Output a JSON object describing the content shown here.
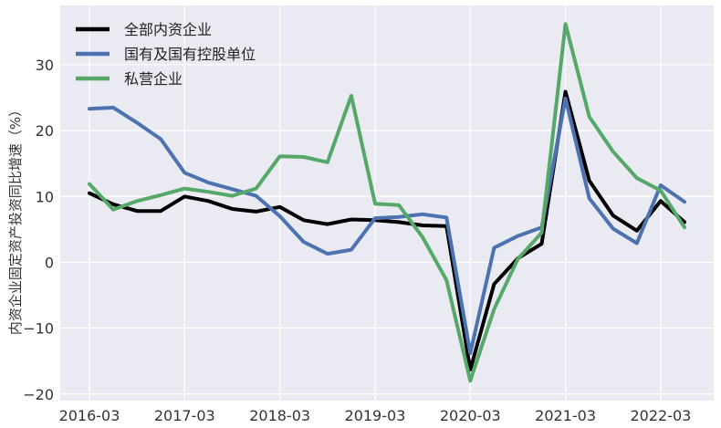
{
  "chart_data": {
    "type": "line",
    "ylabel": "内资企业固定资产投资同比增速（%）",
    "xlabel": "",
    "title": "",
    "ylim": [
      -21,
      39
    ],
    "yticks": [
      -20,
      -10,
      0,
      10,
      20,
      30
    ],
    "xticks": [
      "2016-03",
      "2017-03",
      "2018-03",
      "2019-03",
      "2020-03",
      "2021-03",
      "2022-03"
    ],
    "x": [
      "2016-03",
      "2016-06",
      "2016-09",
      "2016-12",
      "2017-03",
      "2017-06",
      "2017-09",
      "2017-12",
      "2018-03",
      "2018-06",
      "2018-09",
      "2018-12",
      "2019-03",
      "2019-06",
      "2019-09",
      "2019-12",
      "2020-03",
      "2020-06",
      "2020-09",
      "2020-12",
      "2021-03",
      "2021-06",
      "2021-09",
      "2021-12",
      "2022-03",
      "2022-06"
    ],
    "grid": true,
    "legend_position": "top-left",
    "series": [
      {
        "name": "全部内资企业",
        "color": "#000000",
        "values": [
          10.5,
          8.8,
          7.8,
          7.8,
          10.0,
          9.3,
          8.1,
          7.7,
          8.4,
          6.4,
          5.8,
          6.5,
          6.4,
          6.1,
          5.6,
          5.5,
          -16.3,
          -3.3,
          0.6,
          2.8,
          25.9,
          12.4,
          7.1,
          4.8,
          9.3,
          6.1
        ]
      },
      {
        "name": "国有及国有控股单位",
        "color": "#4c72b0",
        "values": [
          23.3,
          23.5,
          21.2,
          18.7,
          13.6,
          12.1,
          11.1,
          10.1,
          7.0,
          3.1,
          1.3,
          1.9,
          6.7,
          6.9,
          7.3,
          6.8,
          -13.8,
          2.2,
          4.0,
          5.3,
          24.9,
          9.7,
          5.1,
          2.9,
          11.7,
          9.2
        ]
      },
      {
        "name": "私营企业",
        "color": "#55a868",
        "values": [
          11.9,
          8.0,
          9.3,
          10.2,
          11.2,
          10.7,
          10.1,
          11.2,
          16.1,
          16.0,
          15.2,
          25.3,
          8.9,
          8.7,
          3.8,
          -2.7,
          -18.0,
          -7.1,
          0.5,
          4.5,
          36.2,
          22.1,
          16.8,
          12.8,
          10.9,
          5.3
        ]
      }
    ]
  }
}
